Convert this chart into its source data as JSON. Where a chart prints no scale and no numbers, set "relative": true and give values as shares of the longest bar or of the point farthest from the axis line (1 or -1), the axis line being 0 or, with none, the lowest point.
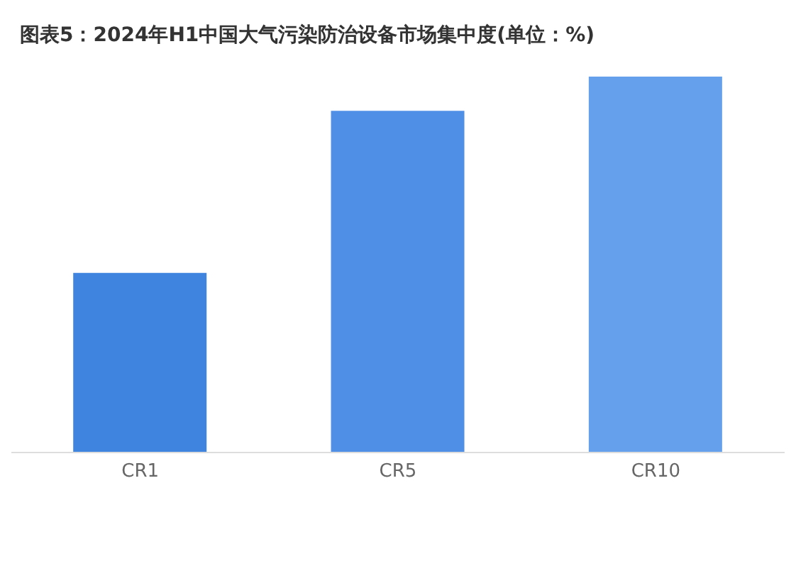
{
  "chart_data": {
    "type": "bar",
    "title": "图表5：2024年H1中国大气污染防治设备市场集中度(单位：%)",
    "relative": true,
    "categories": [
      "CR1",
      "CR5",
      "CR10"
    ],
    "values": [
      0.478,
      0.909,
      1
    ],
    "colors": [
      "#3f85e0",
      "#4f8fe6",
      "#64a0ec"
    ],
    "grid": false,
    "legend": false
  }
}
